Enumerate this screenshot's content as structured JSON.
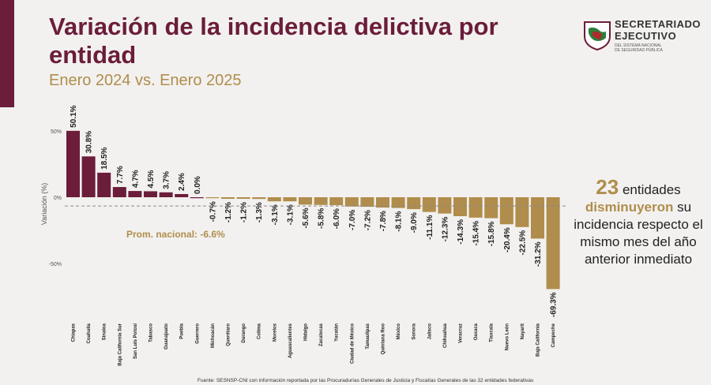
{
  "header": {
    "title": "Variación de la incidencia delictiva por entidad",
    "subtitle": "Enero 2024 vs. Enero 2025"
  },
  "logo": {
    "line1": "SECRETARIADO",
    "line2": "EJECUTIVO",
    "line3": "DEL SISTEMA NACIONAL",
    "line4": "DE SEGURIDAD PÚBLICA"
  },
  "callout": {
    "number": "23",
    "text1": "entidades",
    "highlight": "disminuyeron",
    "text2": "su",
    "text3": "incidencia respecto el mismo mes del año anterior inmediato"
  },
  "source": "Fuente: SESNSP-CNI con información reportada por las Procuradurías Generales de Justicia y Fiscalías Generales de las 32 entidades federativas",
  "colors": {
    "positive": "#6b1d3a",
    "negative": "#b08d4c",
    "average_line": "#8a8a8a"
  },
  "chart_data": {
    "type": "bar",
    "ylabel": "Variación (%)",
    "ylim": [
      -70,
      55
    ],
    "yticks": [
      50,
      0,
      -50
    ],
    "ytick_labels": [
      "50%",
      "0%",
      "-50%"
    ],
    "categories": [
      "Chiapas",
      "Coahuila",
      "Sinaloa",
      "Baja California Sur",
      "San Luis Potosí",
      "Tabasco",
      "Guanajuato",
      "Puebla",
      "Guerrero",
      "Michoacán",
      "Querétaro",
      "Durango",
      "Colima",
      "Morelos",
      "Aguascalientes",
      "Hidalgo",
      "Zacatecas",
      "Yucatán",
      "Ciudad de México",
      "Tamaulipas",
      "Quintana Roo",
      "México",
      "Sonora",
      "Jalisco",
      "Chihuahua",
      "Veracruz",
      "Oaxaca",
      "Tlaxcala",
      "Nuevo León",
      "Nayarit",
      "Baja California",
      "Campeche"
    ],
    "values": [
      50.1,
      30.8,
      18.5,
      7.7,
      4.7,
      4.5,
      3.7,
      2.4,
      0.0,
      -0.7,
      -1.2,
      -1.2,
      -1.3,
      -3.1,
      -3.1,
      -5.6,
      -5.8,
      -6.0,
      -7.0,
      -7.2,
      -7.8,
      -8.1,
      -9.0,
      -11.1,
      -12.3,
      -14.3,
      -15.4,
      -15.8,
      -20.4,
      -22.5,
      -31.2,
      -69.3
    ],
    "value_labels": [
      "50.1%",
      "30.8%",
      "18.5%",
      "7.7%",
      "4.7%",
      "4.5%",
      "3.7%",
      "2.4%",
      "0.0%",
      "-0.7%",
      "-1.2%",
      "-1.2%",
      "-1.3%",
      "-3.1%",
      "-3.1%",
      "-5.6%",
      "-5.8%",
      "-6.0%",
      "-7.0%",
      "-7.2%",
      "-7.8%",
      "-8.1%",
      "-9.0%",
      "-11.1%",
      "-12.3%",
      "-14.3%",
      "-15.4%",
      "-15.8%",
      "-20.4%",
      "-22.5%",
      "-31.2%",
      "-69.3%"
    ],
    "average": -6.6,
    "average_label": "Prom. nacional: -6.6%"
  }
}
